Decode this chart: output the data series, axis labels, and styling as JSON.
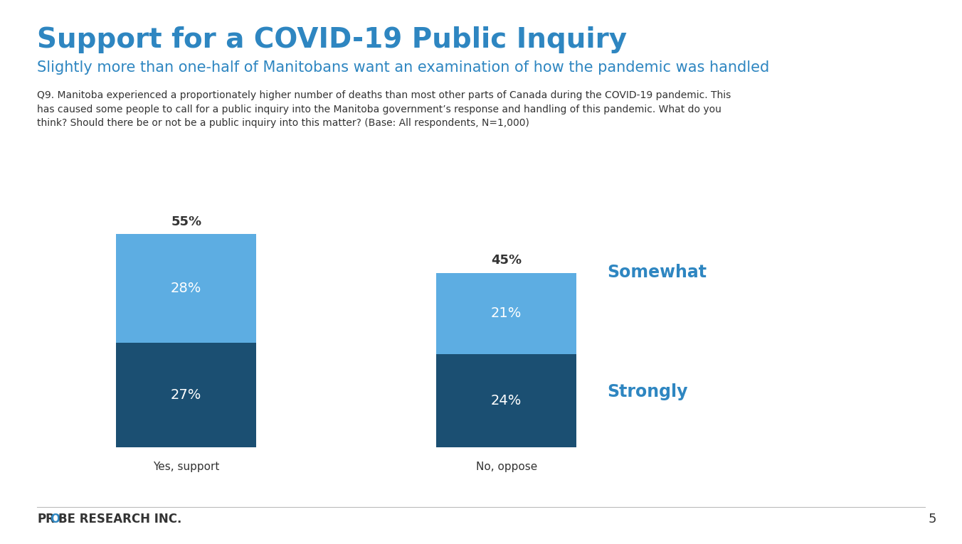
{
  "title": "Support for a COVID-19 Public Inquiry",
  "subtitle": "Slightly more than one-half of Manitobans want an examination of how the pandemic was handled",
  "question": "Q9. Manitoba experienced a proportionately higher number of deaths than most other parts of Canada during the COVID-19 pandemic. This\nhas caused some people to call for a public inquiry into the Manitoba government’s response and handling of this pandemic. What do you\nthink? Should there be or not be a public inquiry into this matter? (Base: All respondents, N=1,000)",
  "categories": [
    "Yes, support",
    "No, oppose"
  ],
  "strongly_values": [
    27,
    24
  ],
  "somewhat_values": [
    28,
    21
  ],
  "totals": [
    "55%",
    "45%"
  ],
  "strongly_color": "#1b4f72",
  "somewhat_color": "#5dade2",
  "bar_labels_strongly": [
    "27%",
    "24%"
  ],
  "bar_labels_somewhat": [
    "28%",
    "21%"
  ],
  "legend_somewhat": "Somewhat",
  "legend_strongly": "Strongly",
  "legend_color": "#2e86c1",
  "title_color": "#2e86c1",
  "subtitle_color": "#2e86c1",
  "text_color": "#333333",
  "bg_color": "#ffffff",
  "page_num": "5",
  "footer_pr": "PR",
  "footer_o": "O",
  "footer_be": "BE RESEARCH INC."
}
